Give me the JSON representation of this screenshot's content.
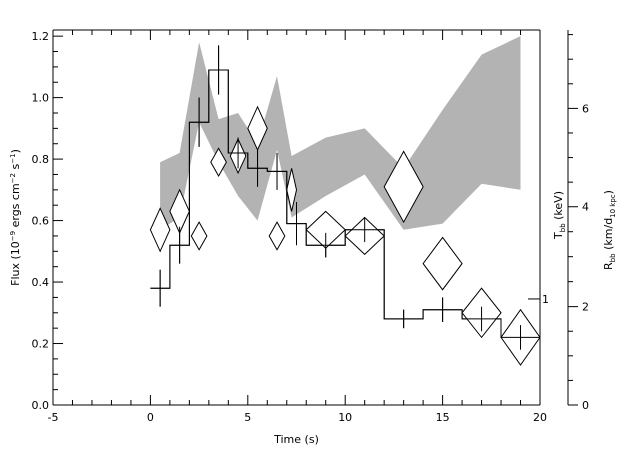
{
  "chart_data": {
    "type": "scatter",
    "title": "",
    "xlabel": "Time (s)",
    "xlim": [
      -5,
      20
    ],
    "xticks": [
      -5,
      0,
      5,
      10,
      15,
      20
    ],
    "ylabel": "Flux (10^-9 ergs cm^-2 s^-1)",
    "ylabel_parts": {
      "pre": "Flux (10",
      "e1": "−9",
      "mid1": " ergs cm",
      "e2": "−2",
      "mid2": " s",
      "e3": "−1",
      "post": ")"
    },
    "ylim": [
      0,
      1.22
    ],
    "yticks": [
      0.0,
      0.2,
      0.4,
      0.6,
      0.8,
      1.0,
      1.2
    ],
    "y2label_T": {
      "main": "T",
      "sub": "bb",
      "post": " (keV)"
    },
    "y2label_R": {
      "main": "R",
      "sub": "bb",
      "mid": " (km/d",
      "sub2": "10 kpc",
      "post": ")"
    },
    "y2_ticks": [
      {
        "label": "6",
        "flux": 0.965
      },
      {
        "label": "4",
        "flux": 0.645
      },
      {
        "label": "2",
        "flux": 0.32
      },
      {
        "label": "0",
        "flux": 0.0
      }
    ],
    "inner_axis_label": {
      "label": "1",
      "flux": 0.345
    },
    "series": [
      {
        "kind": "flux-histogram",
        "bins": [
          {
            "x0": 0,
            "x1": 1,
            "y": 0.38,
            "err": 0.06
          },
          {
            "x0": 1,
            "x1": 2,
            "y": 0.52,
            "err": 0.06
          },
          {
            "x0": 2,
            "x1": 3,
            "y": 0.92,
            "err": 0.08
          },
          {
            "x0": 3,
            "x1": 4,
            "y": 1.09,
            "err": 0.08
          },
          {
            "x0": 4,
            "x1": 5,
            "y": 0.82,
            "err": 0.05
          },
          {
            "x0": 5,
            "x1": 6,
            "y": 0.77,
            "err": 0.06
          },
          {
            "x0": 6,
            "x1": 7,
            "y": 0.76,
            "err": 0.06
          },
          {
            "x0": 7,
            "x1": 8,
            "y": 0.59,
            "err": 0.07
          },
          {
            "x0": 8,
            "x1": 10,
            "y": 0.52,
            "err": 0.04
          },
          {
            "x0": 10,
            "x1": 12,
            "y": 0.57,
            "err": 0.04
          },
          {
            "x0": 12,
            "x1": 14,
            "y": 0.28,
            "err": 0.03
          },
          {
            "x0": 14,
            "x1": 16,
            "y": 0.31,
            "err": 0.04
          },
          {
            "x0": 16,
            "x1": 18,
            "y": 0.28,
            "err": 0.04
          },
          {
            "x0": 18,
            "x1": 20,
            "y": 0.22,
            "err": 0.04
          }
        ]
      },
      {
        "kind": "temperature-diamonds",
        "points": [
          {
            "x": 0.5,
            "y": 0.57,
            "dx": 0.5,
            "dy": 0.07
          },
          {
            "x": 1.5,
            "y": 0.63,
            "dx": 0.5,
            "dy": 0.07
          },
          {
            "x": 2.5,
            "y": 0.55,
            "dx": 0.4,
            "dy": 0.045
          },
          {
            "x": 3.5,
            "y": 0.79,
            "dx": 0.4,
            "dy": 0.045
          },
          {
            "x": 4.5,
            "y": 0.81,
            "dx": 0.4,
            "dy": 0.055
          },
          {
            "x": 5.5,
            "y": 0.9,
            "dx": 0.5,
            "dy": 0.07
          },
          {
            "x": 6.5,
            "y": 0.55,
            "dx": 0.4,
            "dy": 0.045
          },
          {
            "x": 7.25,
            "y": 0.7,
            "dx": 0.25,
            "dy": 0.07
          },
          {
            "x": 9,
            "y": 0.57,
            "dx": 1.0,
            "dy": 0.06
          },
          {
            "x": 11,
            "y": 0.55,
            "dx": 1.0,
            "dy": 0.06
          },
          {
            "x": 13,
            "y": 0.71,
            "dx": 1.0,
            "dy": 0.115
          },
          {
            "x": 15,
            "y": 0.46,
            "dx": 1.0,
            "dy": 0.085
          },
          {
            "x": 17,
            "y": 0.3,
            "dx": 1.0,
            "dy": 0.08
          },
          {
            "x": 19,
            "y": 0.22,
            "dx": 1.0,
            "dy": 0.09
          }
        ]
      },
      {
        "kind": "radius-band",
        "x": [
          0.5,
          1.5,
          2.5,
          3.5,
          4.5,
          5.5,
          6.5,
          7.25,
          9,
          11,
          13,
          15,
          17,
          19
        ],
        "upper": [
          0.79,
          0.82,
          1.18,
          0.93,
          0.95,
          0.85,
          1.07,
          0.81,
          0.87,
          0.9,
          0.77,
          0.96,
          1.14,
          1.2
        ],
        "lower": [
          0.57,
          0.61,
          0.92,
          0.79,
          0.68,
          0.6,
          0.83,
          0.61,
          0.68,
          0.75,
          0.57,
          0.59,
          0.72,
          0.7
        ],
        "color": "#b3b3b3"
      }
    ],
    "grid": false
  }
}
